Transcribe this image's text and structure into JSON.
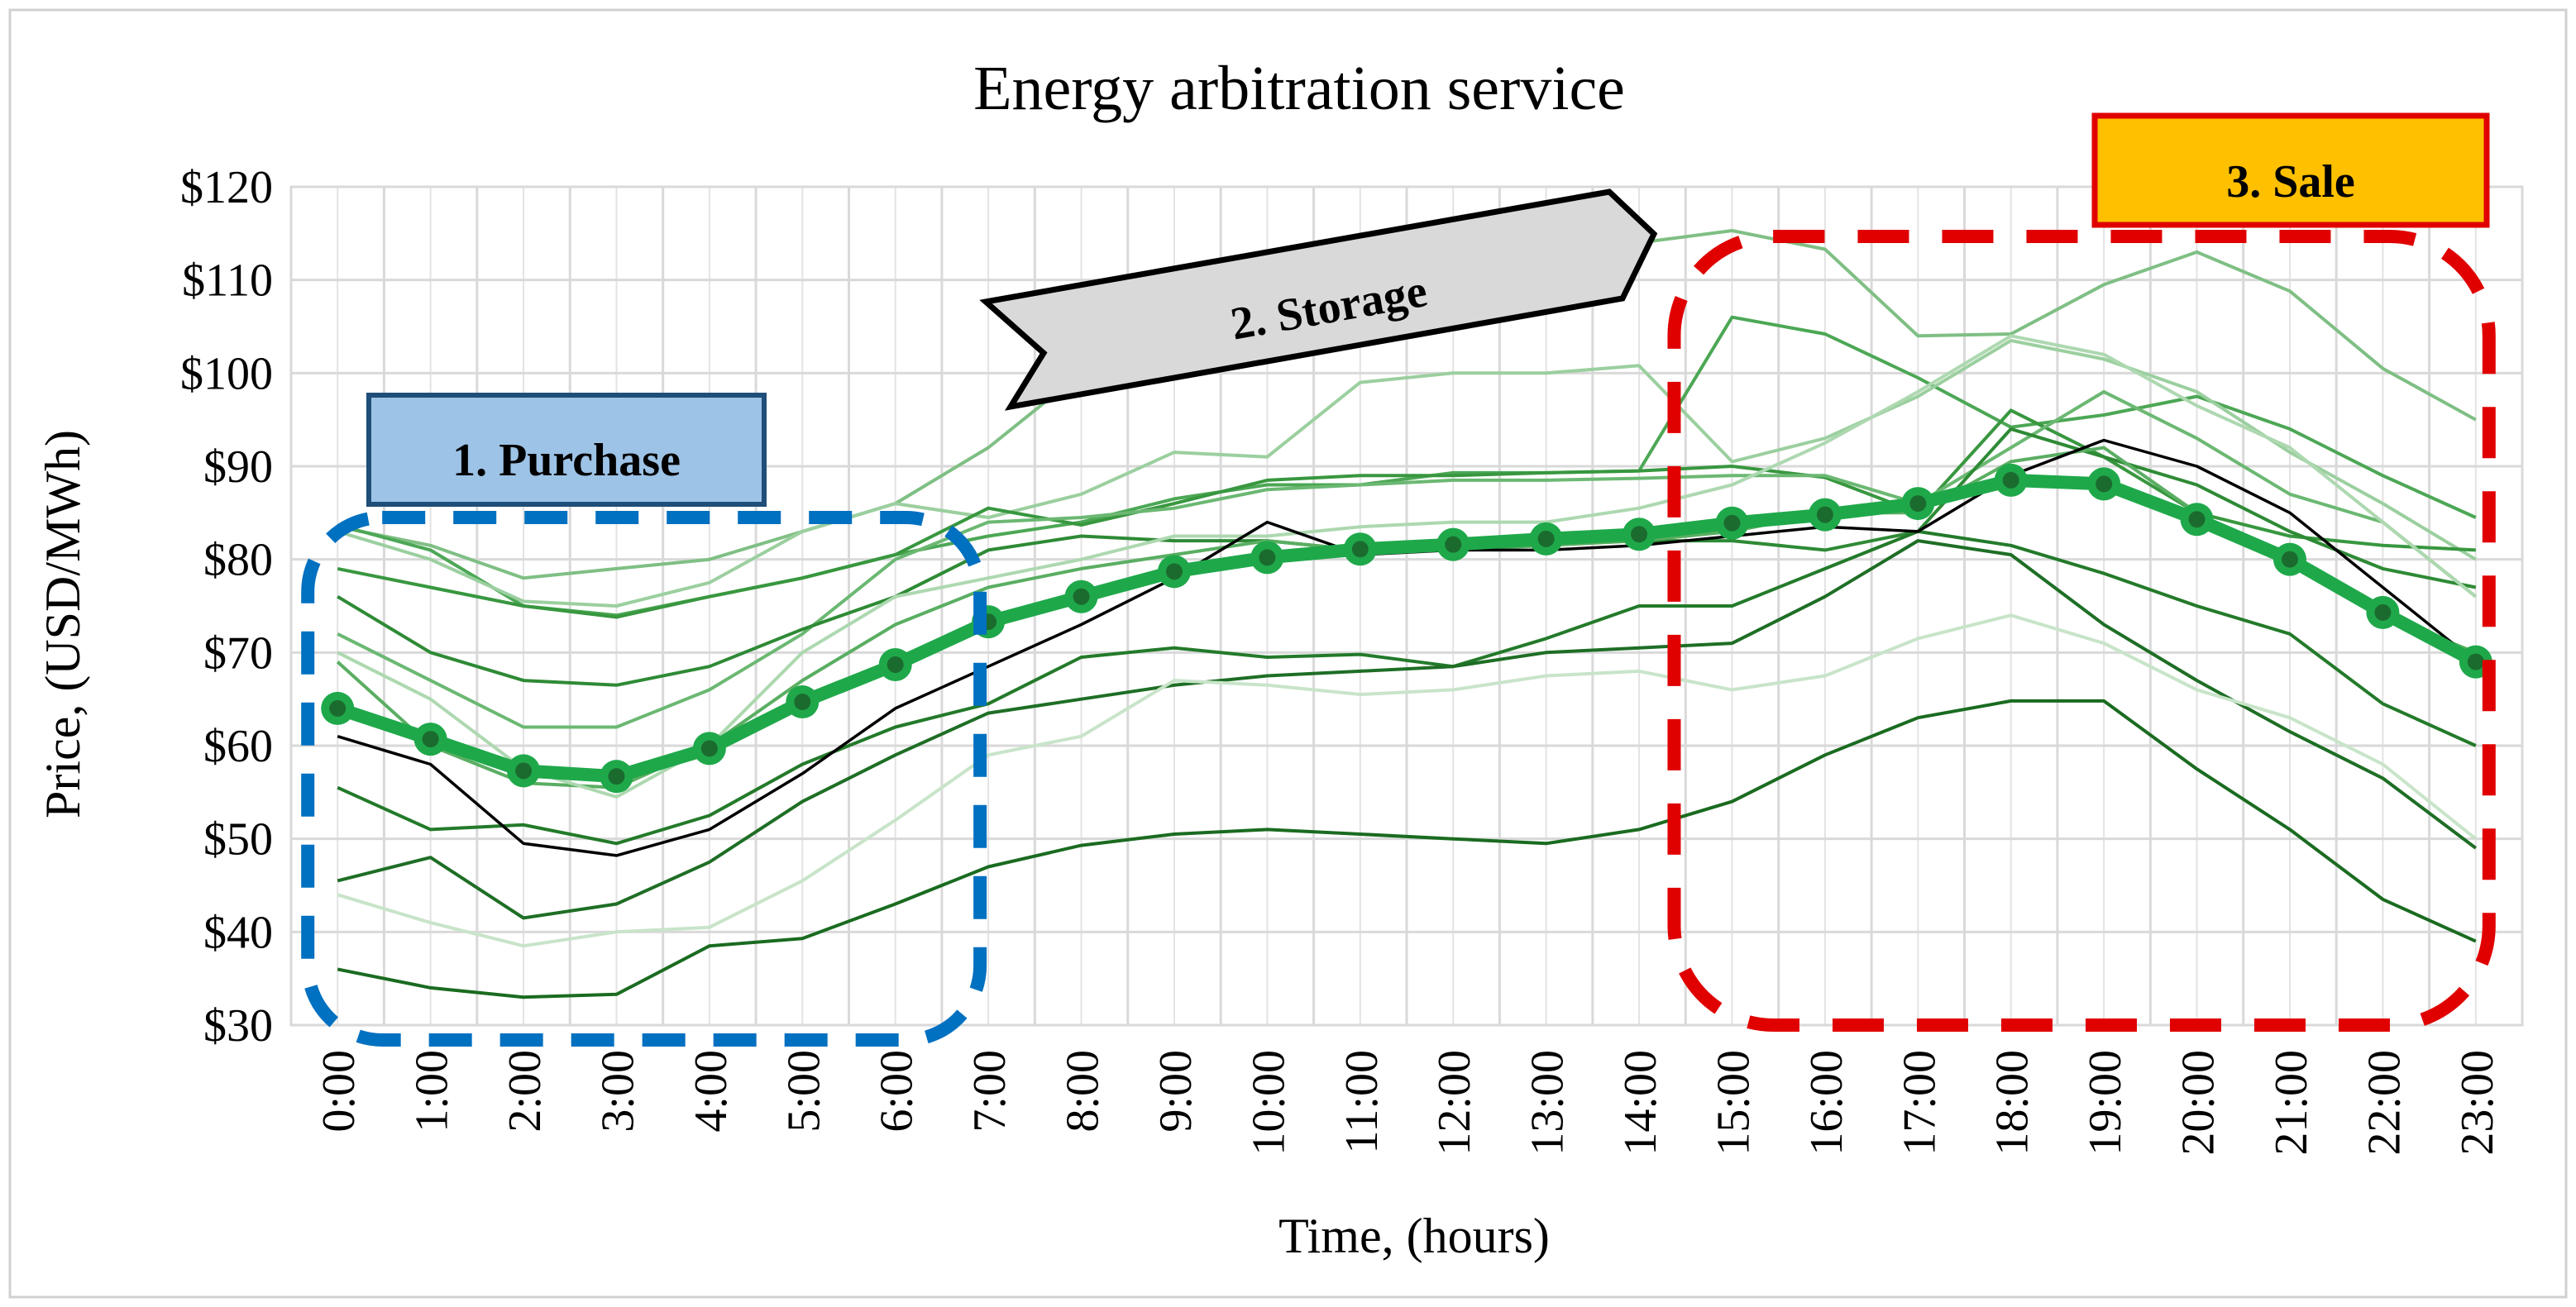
{
  "chart_data": {
    "type": "line",
    "title": "Energy arbitration service",
    "xlabel": "Time, (hours)",
    "ylabel": "Price, (USD/MWh)",
    "ylim": [
      30,
      120
    ],
    "yticks": [
      30,
      40,
      50,
      60,
      70,
      80,
      90,
      100,
      110,
      120
    ],
    "ytick_labels": [
      "$30",
      "$40",
      "$50",
      "$60",
      "$70",
      "$80",
      "$90",
      "$100",
      "$110",
      "$120"
    ],
    "categories": [
      "0:00",
      "1:00",
      "2:00",
      "3:00",
      "4:00",
      "5:00",
      "6:00",
      "7:00",
      "8:00",
      "9:00",
      "10:00",
      "11:00",
      "12:00",
      "13:00",
      "14:00",
      "15:00",
      "16:00",
      "17:00",
      "18:00",
      "19:00",
      "20:00",
      "21:00",
      "22:00",
      "23:00"
    ],
    "grid": true,
    "average_series": {
      "color": "#1fa84a",
      "values": [
        64,
        60.7,
        57.3,
        56.7,
        59.7,
        64.7,
        68.7,
        73.3,
        76,
        78.7,
        80.2,
        81.1,
        81.6,
        82.2,
        82.7,
        83.9,
        84.8,
        86,
        88.5,
        88.1,
        84.3,
        80,
        74.3,
        69
      ]
    },
    "black_series": {
      "color": "#000000",
      "values": [
        61,
        58,
        49.5,
        48.2,
        51,
        57,
        64,
        68.5,
        73,
        78,
        84,
        80.5,
        81,
        81,
        81.5,
        82.5,
        83.5,
        83,
        89,
        92.8,
        90,
        85,
        77,
        69
      ]
    },
    "series": [
      {
        "color": "#7fbf84",
        "values": [
          83.5,
          81.5,
          78,
          79,
          80,
          83,
          86,
          92,
          100,
          104,
          107,
          110,
          113,
          113,
          114,
          115.3,
          113.3,
          104,
          104.2,
          109.5,
          113,
          108.8,
          100.5,
          95
        ]
      },
      {
        "color": "#4ca755",
        "values": [
          83.7,
          81,
          75,
          74,
          76,
          78,
          80.5,
          82.5,
          84,
          86.5,
          88,
          88,
          89.3,
          89.3,
          89.5,
          106,
          104.2,
          99.5,
          94.2,
          95.5,
          97.5,
          94,
          89,
          84.5
        ]
      },
      {
        "color": "#9bcf9f",
        "values": [
          83,
          80,
          75.5,
          75,
          77.5,
          83,
          86,
          84.5,
          87,
          91.5,
          91,
          99,
          100,
          100,
          100.8,
          90.5,
          93,
          97.5,
          103.5,
          101.5,
          98,
          91.5,
          86,
          80
        ]
      },
      {
        "color": "#38973f",
        "values": [
          79,
          77,
          75,
          73.8,
          76,
          78,
          80.5,
          85.5,
          83.7,
          86,
          88.5,
          89,
          89,
          89.3,
          89.5,
          90,
          88.8,
          85,
          96,
          91,
          85,
          82.5,
          81.5,
          81
        ]
      },
      {
        "color": "#6bb872",
        "values": [
          72,
          67,
          62,
          62,
          66,
          72,
          80,
          84,
          84.5,
          85.5,
          87.5,
          88,
          88.5,
          88.5,
          88.7,
          89,
          89,
          86,
          92,
          98,
          93,
          87,
          84,
          76
        ]
      },
      {
        "color": "#2e8a35",
        "values": [
          76,
          70,
          67,
          66.5,
          68.5,
          72.5,
          76,
          81,
          82.5,
          82,
          82,
          81,
          81.5,
          82,
          82,
          82,
          81,
          83,
          94,
          91,
          88,
          83,
          79,
          77
        ]
      },
      {
        "color": "#5aae62",
        "values": [
          69,
          60,
          56,
          55.5,
          60,
          67,
          73,
          77,
          79,
          80.5,
          82,
          81,
          81,
          81.5,
          82,
          83,
          85,
          85,
          90.5,
          92,
          85,
          80,
          74,
          70
        ]
      },
      {
        "color": "#237a2a",
        "values": [
          55.5,
          51,
          51.5,
          49.5,
          52.5,
          58,
          62,
          64.5,
          69.5,
          70.5,
          69.5,
          69.8,
          68.5,
          71.5,
          75,
          75,
          79,
          83,
          81.5,
          78.5,
          75,
          72,
          64.5,
          60
        ]
      },
      {
        "color": "#1e6e25",
        "values": [
          45.5,
          48,
          41.5,
          43,
          47.5,
          54,
          59,
          63.5,
          65,
          66.5,
          67.5,
          68,
          68.5,
          70,
          70.5,
          71,
          76,
          82,
          80.5,
          73,
          67,
          61.5,
          56.5,
          49
        ]
      },
      {
        "color": "#c8e4c9",
        "values": [
          44,
          41,
          38.5,
          40,
          40.5,
          45.5,
          52,
          59,
          61,
          67,
          66.5,
          65.5,
          66,
          67.5,
          68,
          66,
          67.5,
          71.5,
          74,
          71,
          66,
          63,
          58,
          50
        ]
      },
      {
        "color": "#add8b0",
        "values": [
          70,
          65,
          57.5,
          54.5,
          60,
          70,
          76,
          78,
          80,
          82.5,
          82.5,
          83.5,
          84,
          84,
          85.5,
          88,
          92.5,
          98,
          104,
          102,
          96.5,
          92,
          84,
          76
        ]
      },
      {
        "color": "#1a6b20",
        "values": [
          36,
          34,
          33,
          33.3,
          38.5,
          39.3,
          43,
          47,
          49.3,
          50.5,
          51,
          50.5,
          50,
          49.5,
          51,
          54,
          59,
          63,
          64.8,
          64.8,
          57.5,
          51,
          43.5,
          39
        ]
      }
    ],
    "annotations": [
      {
        "label": "1. Purchase",
        "fill": "#9dc3e6",
        "border": "#1f4e79",
        "region_color": "#0070c0",
        "hours": [
          "0:00",
          "7:00"
        ]
      },
      {
        "label": "2. Storage",
        "fill": "#d9d9d9",
        "border": "#000000"
      },
      {
        "label": "3. Sale",
        "fill": "#ffc000",
        "border": "#e00000",
        "region_color": "#e00000",
        "hours": [
          "15:00",
          "23:00"
        ]
      }
    ]
  }
}
